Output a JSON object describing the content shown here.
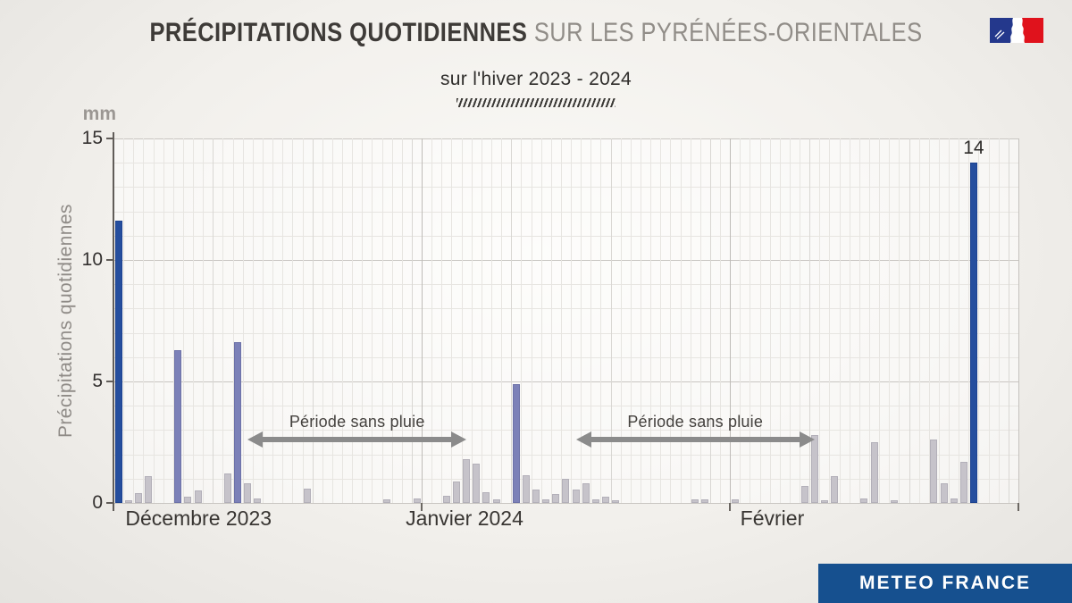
{
  "header": {
    "title_bold": "PRÉCIPITATIONS QUOTIDIENNES",
    "title_light": " SUR LES PYRÉNÉES-ORIENTALES",
    "subtitle": "sur l'hiver 2023 - 2024"
  },
  "logo": {
    "name": "république-française-flag"
  },
  "footer": {
    "brand": "METEO FRANCE"
  },
  "chart_data": {
    "type": "bar",
    "title": "Précipitations quotidiennes sur les Pyrénées-Orientales sur l'hiver 2023 - 2024",
    "unit": "mm",
    "ylabel": "Précipitations quotidiennes",
    "ylim": [
      0,
      15
    ],
    "yticks": [
      0,
      5,
      10,
      15
    ],
    "grid": "daily vertical minor lines, 1 mm horizontal minor lines, majors every 5 mm and at month boundaries",
    "months": [
      {
        "label": "Décembre 2023",
        "days": 31
      },
      {
        "label": "Janvier 2024",
        "days": 31
      },
      {
        "label": "Février",
        "days": 29
      }
    ],
    "colors": {
      "dark": "#254e9e",
      "medium": "#7c81b8",
      "light": "#c6c3ca"
    },
    "bar_borders": {
      "dark": "#1d4390",
      "medium": "#6d72a8",
      "light": "#b3b0b9"
    },
    "bars": [
      {
        "month": 0,
        "day": 1,
        "value": 11.6,
        "tone": "dark"
      },
      {
        "month": 0,
        "day": 2,
        "value": 0.1,
        "tone": "light"
      },
      {
        "month": 0,
        "day": 3,
        "value": 0.4,
        "tone": "light"
      },
      {
        "month": 0,
        "day": 4,
        "value": 1.1,
        "tone": "light"
      },
      {
        "month": 0,
        "day": 7,
        "value": 6.3,
        "tone": "medium"
      },
      {
        "month": 0,
        "day": 8,
        "value": 0.25,
        "tone": "light"
      },
      {
        "month": 0,
        "day": 9,
        "value": 0.5,
        "tone": "light"
      },
      {
        "month": 0,
        "day": 12,
        "value": 1.2,
        "tone": "light"
      },
      {
        "month": 0,
        "day": 13,
        "value": 6.6,
        "tone": "medium"
      },
      {
        "month": 0,
        "day": 14,
        "value": 0.8,
        "tone": "light"
      },
      {
        "month": 0,
        "day": 15,
        "value": 0.2,
        "tone": "light"
      },
      {
        "month": 0,
        "day": 20,
        "value": 0.6,
        "tone": "light"
      },
      {
        "month": 0,
        "day": 28,
        "value": 0.15,
        "tone": "light"
      },
      {
        "month": 0,
        "day": 31,
        "value": 0.2,
        "tone": "light"
      },
      {
        "month": 1,
        "day": 3,
        "value": 0.3,
        "tone": "light"
      },
      {
        "month": 1,
        "day": 4,
        "value": 0.9,
        "tone": "light"
      },
      {
        "month": 1,
        "day": 5,
        "value": 1.8,
        "tone": "light"
      },
      {
        "month": 1,
        "day": 6,
        "value": 1.6,
        "tone": "light"
      },
      {
        "month": 1,
        "day": 7,
        "value": 0.45,
        "tone": "light"
      },
      {
        "month": 1,
        "day": 8,
        "value": 0.15,
        "tone": "light"
      },
      {
        "month": 1,
        "day": 10,
        "value": 4.9,
        "tone": "medium"
      },
      {
        "month": 1,
        "day": 11,
        "value": 1.15,
        "tone": "light"
      },
      {
        "month": 1,
        "day": 12,
        "value": 0.55,
        "tone": "light"
      },
      {
        "month": 1,
        "day": 13,
        "value": 0.15,
        "tone": "light"
      },
      {
        "month": 1,
        "day": 14,
        "value": 0.35,
        "tone": "light"
      },
      {
        "month": 1,
        "day": 15,
        "value": 1.0,
        "tone": "light"
      },
      {
        "month": 1,
        "day": 16,
        "value": 0.55,
        "tone": "light"
      },
      {
        "month": 1,
        "day": 17,
        "value": 0.8,
        "tone": "light"
      },
      {
        "month": 1,
        "day": 18,
        "value": 0.15,
        "tone": "light"
      },
      {
        "month": 1,
        "day": 19,
        "value": 0.25,
        "tone": "light"
      },
      {
        "month": 1,
        "day": 20,
        "value": 0.1,
        "tone": "light"
      },
      {
        "month": 1,
        "day": 28,
        "value": 0.15,
        "tone": "light"
      },
      {
        "month": 1,
        "day": 29,
        "value": 0.15,
        "tone": "light"
      },
      {
        "month": 2,
        "day": 1,
        "value": 0.15,
        "tone": "light"
      },
      {
        "month": 2,
        "day": 8,
        "value": 0.7,
        "tone": "light"
      },
      {
        "month": 2,
        "day": 9,
        "value": 2.8,
        "tone": "light"
      },
      {
        "month": 2,
        "day": 10,
        "value": 0.1,
        "tone": "light"
      },
      {
        "month": 2,
        "day": 11,
        "value": 1.1,
        "tone": "light"
      },
      {
        "month": 2,
        "day": 14,
        "value": 0.2,
        "tone": "light"
      },
      {
        "month": 2,
        "day": 15,
        "value": 2.5,
        "tone": "light"
      },
      {
        "month": 2,
        "day": 17,
        "value": 0.1,
        "tone": "light"
      },
      {
        "month": 2,
        "day": 21,
        "value": 2.6,
        "tone": "light"
      },
      {
        "month": 2,
        "day": 22,
        "value": 0.8,
        "tone": "light"
      },
      {
        "month": 2,
        "day": 23,
        "value": 0.2,
        "tone": "light"
      },
      {
        "month": 2,
        "day": 24,
        "value": 1.7,
        "tone": "light"
      },
      {
        "month": 2,
        "day": 25,
        "value": 14,
        "tone": "dark",
        "label": "14"
      }
    ],
    "annotations": [
      {
        "label": "Période sans pluie",
        "start_day": 13.5,
        "end_day": 35.5,
        "y_mm": 2.6
      },
      {
        "label": "Période sans pluie",
        "start_day": 46.5,
        "end_day": 70.5,
        "y_mm": 2.6
      }
    ]
  }
}
